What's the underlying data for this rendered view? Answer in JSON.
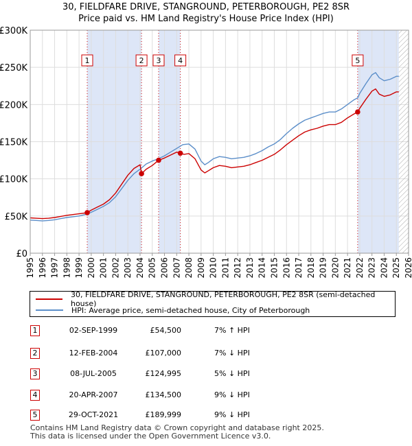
{
  "title_lines": [
    "30, FIELDFARE DRIVE, STANGROUND, PETERBOROUGH, PE2 8SR",
    "Price paid vs. HM Land Registry's House Price Index (HPI)"
  ],
  "colors": {
    "property": "#cc0000",
    "hpi": "#5b8ec9",
    "shade": "#dde6f7",
    "grid": "#dddddd",
    "hatch": "#aaaaaa"
  },
  "chart_data": {
    "type": "line",
    "x_range": [
      1995,
      2026
    ],
    "ylim": [
      0,
      300000
    ],
    "y_ticks": [
      0,
      50000,
      100000,
      150000,
      200000,
      250000,
      300000
    ],
    "y_tick_labels": [
      "£0",
      "£50K",
      "£100K",
      "£150K",
      "£200K",
      "£250K",
      "£300K"
    ],
    "x_tick_labels": [
      "1995",
      "1996",
      "1997",
      "1998",
      "1999",
      "2000",
      "2001",
      "2002",
      "2003",
      "2004",
      "2005",
      "2006",
      "2007",
      "2008",
      "2009",
      "2010",
      "2011",
      "2012",
      "2013",
      "2014",
      "2015",
      "2016",
      "2017",
      "2018",
      "2019",
      "2020",
      "2021",
      "2022",
      "2023",
      "2024",
      "2025",
      "2026"
    ],
    "data_end": 2025.2,
    "shaded_ranges": [
      [
        1999.67,
        2004.12
      ],
      [
        2005.52,
        2007.3
      ],
      [
        2021.83,
        2025.2
      ]
    ],
    "series": [
      {
        "name": "HPI",
        "points": [
          [
            1995.0,
            44500
          ],
          [
            1995.5,
            44000
          ],
          [
            1996.0,
            43500
          ],
          [
            1996.5,
            44000
          ],
          [
            1997.0,
            45000
          ],
          [
            1997.5,
            46500
          ],
          [
            1998.0,
            48000
          ],
          [
            1998.5,
            49000
          ],
          [
            1999.0,
            50000
          ],
          [
            1999.5,
            52000
          ],
          [
            2000.0,
            55000
          ],
          [
            2000.5,
            59000
          ],
          [
            2001.0,
            63000
          ],
          [
            2001.5,
            68000
          ],
          [
            2002.0,
            76000
          ],
          [
            2002.5,
            87000
          ],
          [
            2003.0,
            98000
          ],
          [
            2003.5,
            107000
          ],
          [
            2004.0,
            113000
          ],
          [
            2004.5,
            120000
          ],
          [
            2005.0,
            124000
          ],
          [
            2005.5,
            127000
          ],
          [
            2006.0,
            131000
          ],
          [
            2006.5,
            136000
          ],
          [
            2007.0,
            141000
          ],
          [
            2007.5,
            146000
          ],
          [
            2008.0,
            147000
          ],
          [
            2008.5,
            140000
          ],
          [
            2009.0,
            124000
          ],
          [
            2009.3,
            119000
          ],
          [
            2009.6,
            122000
          ],
          [
            2010.0,
            127000
          ],
          [
            2010.5,
            130000
          ],
          [
            2011.0,
            129000
          ],
          [
            2011.5,
            127000
          ],
          [
            2012.0,
            128000
          ],
          [
            2012.5,
            129000
          ],
          [
            2013.0,
            131000
          ],
          [
            2013.5,
            134000
          ],
          [
            2014.0,
            138000
          ],
          [
            2014.5,
            143000
          ],
          [
            2015.0,
            147000
          ],
          [
            2015.5,
            153000
          ],
          [
            2016.0,
            161000
          ],
          [
            2016.5,
            168000
          ],
          [
            2017.0,
            174000
          ],
          [
            2017.5,
            179000
          ],
          [
            2018.0,
            182000
          ],
          [
            2018.5,
            185000
          ],
          [
            2019.0,
            188000
          ],
          [
            2019.5,
            190000
          ],
          [
            2020.0,
            190000
          ],
          [
            2020.5,
            194000
          ],
          [
            2021.0,
            200000
          ],
          [
            2021.5,
            206000
          ],
          [
            2021.83,
            209000
          ],
          [
            2022.0,
            215000
          ],
          [
            2022.5,
            228000
          ],
          [
            2023.0,
            240000
          ],
          [
            2023.3,
            243000
          ],
          [
            2023.6,
            236000
          ],
          [
            2024.0,
            232000
          ],
          [
            2024.5,
            234000
          ],
          [
            2025.0,
            238000
          ],
          [
            2025.2,
            238000
          ]
        ]
      },
      {
        "name": "30, FIELDFARE DRIVE, STANGROUND, PETERBOROUGH, PE2 8SR (semi-detached house)",
        "points": [
          [
            1995.0,
            47500
          ],
          [
            1995.5,
            47000
          ],
          [
            1996.0,
            46500
          ],
          [
            1996.5,
            47000
          ],
          [
            1997.0,
            48000
          ],
          [
            1997.5,
            49500
          ],
          [
            1998.0,
            51000
          ],
          [
            1998.5,
            52000
          ],
          [
            1999.0,
            53000
          ],
          [
            1999.67,
            54500
          ],
          [
            2000.0,
            58000
          ],
          [
            2000.5,
            62000
          ],
          [
            2001.0,
            66000
          ],
          [
            2001.5,
            72000
          ],
          [
            2002.0,
            81000
          ],
          [
            2002.5,
            93000
          ],
          [
            2003.0,
            105000
          ],
          [
            2003.5,
            114000
          ],
          [
            2004.0,
            119000
          ],
          [
            2004.12,
            107000
          ],
          [
            2004.5,
            113000
          ],
          [
            2005.0,
            118000
          ],
          [
            2005.52,
            124995
          ],
          [
            2006.0,
            128000
          ],
          [
            2006.5,
            132000
          ],
          [
            2007.0,
            136000
          ],
          [
            2007.3,
            134500
          ],
          [
            2007.6,
            133000
          ],
          [
            2008.0,
            134000
          ],
          [
            2008.5,
            127000
          ],
          [
            2009.0,
            112000
          ],
          [
            2009.3,
            108000
          ],
          [
            2009.6,
            111000
          ],
          [
            2010.0,
            115000
          ],
          [
            2010.5,
            118000
          ],
          [
            2011.0,
            117000
          ],
          [
            2011.5,
            115000
          ],
          [
            2012.0,
            116000
          ],
          [
            2012.5,
            117000
          ],
          [
            2013.0,
            119000
          ],
          [
            2013.5,
            122000
          ],
          [
            2014.0,
            125000
          ],
          [
            2014.5,
            129000
          ],
          [
            2015.0,
            133000
          ],
          [
            2015.5,
            139000
          ],
          [
            2016.0,
            146000
          ],
          [
            2016.5,
            152000
          ],
          [
            2017.0,
            158000
          ],
          [
            2017.5,
            163000
          ],
          [
            2018.0,
            166000
          ],
          [
            2018.5,
            168000
          ],
          [
            2019.0,
            171000
          ],
          [
            2019.5,
            173000
          ],
          [
            2020.0,
            173000
          ],
          [
            2020.5,
            176000
          ],
          [
            2021.0,
            182000
          ],
          [
            2021.5,
            187000
          ],
          [
            2021.83,
            189999
          ],
          [
            2022.0,
            195000
          ],
          [
            2022.5,
            207000
          ],
          [
            2023.0,
            218000
          ],
          [
            2023.3,
            221000
          ],
          [
            2023.6,
            214000
          ],
          [
            2024.0,
            211000
          ],
          [
            2024.5,
            213000
          ],
          [
            2025.0,
            217000
          ],
          [
            2025.2,
            217000
          ]
        ]
      }
    ],
    "sales": [
      {
        "num": "1",
        "date": "02-SEP-1999",
        "x": 1999.67,
        "price_value": 54500,
        "price": "£54,500",
        "hpi": "7% ↑ HPI"
      },
      {
        "num": "2",
        "date": "12-FEB-2004",
        "x": 2004.12,
        "price_value": 107000,
        "price": "£107,000",
        "hpi": "7% ↓ HPI"
      },
      {
        "num": "3",
        "date": "08-JUL-2005",
        "x": 2005.52,
        "price_value": 124995,
        "price": "£124,995",
        "hpi": "5% ↓ HPI"
      },
      {
        "num": "4",
        "date": "20-APR-2007",
        "x": 2007.3,
        "price_value": 134500,
        "price": "£134,500",
        "hpi": "9% ↓ HPI"
      },
      {
        "num": "5",
        "date": "29-OCT-2021",
        "x": 2021.83,
        "price_value": 189999,
        "price": "£189,999",
        "hpi": "9% ↓ HPI"
      }
    ]
  },
  "legend": {
    "property_label": "30, FIELDFARE DRIVE, STANGROUND, PETERBOROUGH, PE2 8SR (semi-detached house)",
    "hpi_label": "HPI: Average price, semi-detached house, City of Peterborough"
  },
  "footer": {
    "line1": "Contains HM Land Registry data © Crown copyright and database right 2025.",
    "line2": "This data is licensed under the Open Government Licence v3.0."
  }
}
